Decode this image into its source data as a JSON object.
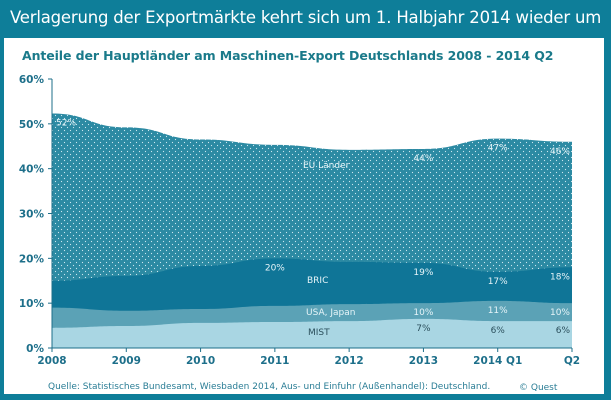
{
  "header": {
    "title": "Verlagerung der Exportmärkte kehrt sich um 1. Halbjahr 2014 wieder um"
  },
  "colors": {
    "frame": "#0e7e99",
    "eu": "#2c8aa3",
    "bric": "#0f7597",
    "usa_japan": "#5ba2b6",
    "mist": "#a9d6e3",
    "axis": "#1d6f8a"
  },
  "chart_data": {
    "type": "area",
    "title": "Anteile der Hauptländer am Maschinen-Export Deutschlands 2008 - 2014 Q2",
    "xlabel": "",
    "ylabel": "",
    "categories": [
      "2008",
      "2009",
      "2010",
      "2011",
      "2012",
      "2013",
      "2014 Q1",
      "Q2"
    ],
    "ylim": [
      0,
      60
    ],
    "yticks": [
      "0%",
      "10%",
      "20%",
      "30%",
      "40%",
      "50%",
      "60%"
    ],
    "grid": false,
    "series": [
      {
        "name": "EU Länder",
        "values": [
          52.3,
          49.2,
          46.5,
          45.3,
          44.2,
          44.4,
          46.7,
          46.0
        ]
      },
      {
        "name": "BRIC",
        "values": [
          15.0,
          16.1,
          18.3,
          20.0,
          19.2,
          19.0,
          17.0,
          18.0
        ]
      },
      {
        "name": "USA, Japan",
        "values": [
          9.0,
          8.3,
          8.7,
          9.4,
          9.8,
          10.0,
          10.5,
          10.0
        ]
      },
      {
        "name": "MIST",
        "values": [
          4.5,
          4.9,
          5.6,
          5.8,
          6.0,
          6.5,
          6.0,
          6.0
        ]
      }
    ],
    "data_labels": [
      {
        "series": "EU Länder",
        "category": "2008",
        "text": "52%"
      },
      {
        "series": "EU Länder",
        "category": "2013",
        "text": "44%"
      },
      {
        "series": "EU Länder",
        "category": "2014 Q1",
        "text": "47%"
      },
      {
        "series": "EU Länder",
        "category": "Q2",
        "text": "46%"
      },
      {
        "series": "BRIC",
        "category": "2011",
        "text": "20%"
      },
      {
        "series": "BRIC",
        "category": "2013",
        "text": "19%"
      },
      {
        "series": "BRIC",
        "category": "2014 Q1",
        "text": "17%"
      },
      {
        "series": "BRIC",
        "category": "Q2",
        "text": "18%"
      },
      {
        "series": "USA, Japan",
        "category": "2013",
        "text": "10%"
      },
      {
        "series": "USA, Japan",
        "category": "2014 Q1",
        "text": "11%"
      },
      {
        "series": "USA, Japan",
        "category": "Q2",
        "text": "10%"
      },
      {
        "series": "MIST",
        "category": "2013",
        "text": "7%"
      },
      {
        "series": "MIST",
        "category": "2014 Q1",
        "text": "6%"
      },
      {
        "series": "MIST",
        "category": "Q2",
        "text": "6%"
      }
    ],
    "series_labels": [
      "EU Länder",
      "BRIC",
      "USA, Japan",
      "MIST"
    ]
  },
  "footer": {
    "source": "Quelle: Statistisches Bundesamt, Wiesbaden 2014, Aus- und Einfuhr (Außenhandel): Deutschland.",
    "copyright": "© Quest"
  }
}
